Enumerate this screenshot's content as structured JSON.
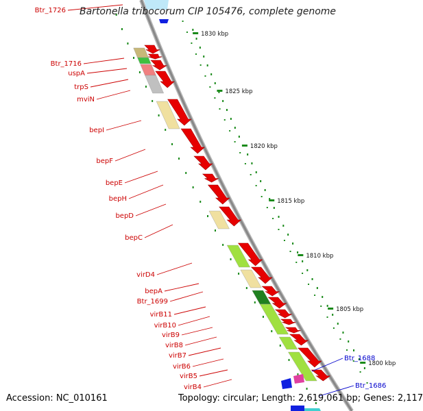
{
  "title": "Bartonella tribocorum CIP 105476, complete genome",
  "footer": {
    "accession": "Accession: NC_010161",
    "topology": "Topology: circular; Length: 2,619,061 bp; Genes: 2,117"
  },
  "colors": {
    "red_gene": "#e60000",
    "label_red": "#cc0000",
    "label_blue": "#0000cc",
    "tick_green": "#1a8a1a",
    "backbone": "#888888"
  },
  "scale_ticks": [
    "1830 kbp",
    "1825 kbp",
    "1820 kbp",
    "1815 kbp",
    "1810 kbp",
    "1805 kbp",
    "1800 kbp"
  ],
  "gene_labels": [
    {
      "text": "Btr_1726",
      "strand": "forward"
    },
    {
      "text": "Btr_1716",
      "strand": "forward"
    },
    {
      "text": "uspA",
      "strand": "forward"
    },
    {
      "text": "trpS",
      "strand": "forward"
    },
    {
      "text": "mviN",
      "strand": "forward"
    },
    {
      "text": "bepI",
      "strand": "forward"
    },
    {
      "text": "bepF",
      "strand": "forward"
    },
    {
      "text": "bepE",
      "strand": "forward"
    },
    {
      "text": "bepH",
      "strand": "forward"
    },
    {
      "text": "bepD",
      "strand": "forward"
    },
    {
      "text": "bepC",
      "strand": "forward"
    },
    {
      "text": "virD4",
      "strand": "forward"
    },
    {
      "text": "bepA",
      "strand": "forward"
    },
    {
      "text": "Btr_1699",
      "strand": "forward"
    },
    {
      "text": "virB11",
      "strand": "forward"
    },
    {
      "text": "virB10",
      "strand": "forward"
    },
    {
      "text": "virB9",
      "strand": "forward"
    },
    {
      "text": "virB8",
      "strand": "forward"
    },
    {
      "text": "virB7",
      "strand": "forward"
    },
    {
      "text": "virB6",
      "strand": "forward"
    },
    {
      "text": "virB5",
      "strand": "forward"
    },
    {
      "text": "virB4",
      "strand": "forward"
    },
    {
      "text": "Btr_1688",
      "strand": "reverse"
    },
    {
      "text": "Btr_1686",
      "strand": "reverse"
    }
  ]
}
